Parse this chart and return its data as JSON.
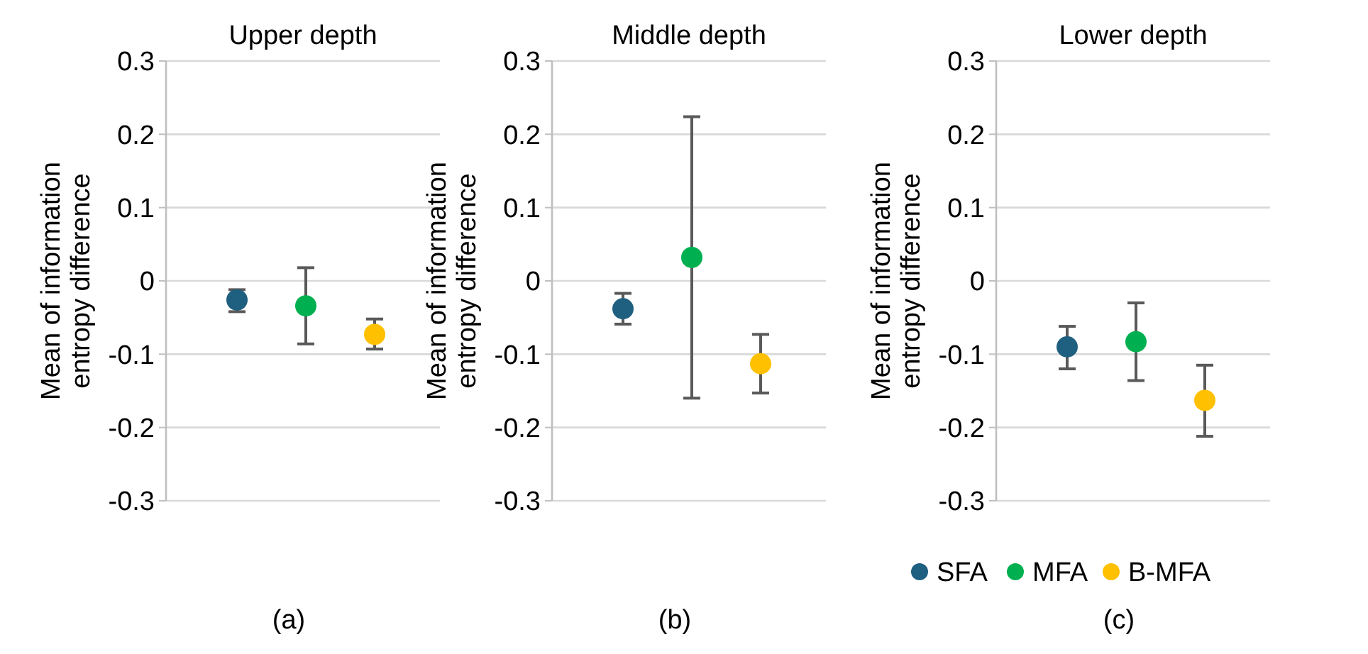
{
  "chart_data": [
    {
      "type": "scatter",
      "title": "Upper depth",
      "ylabel": "Mean of information entropy difference",
      "categories": [
        null,
        null,
        null
      ],
      "ylim": [
        -0.3,
        0.3
      ],
      "yticks": [
        -0.3,
        -0.2,
        -0.1,
        0,
        0.1,
        0.2,
        0.3
      ],
      "grid": "y",
      "marker": "circle",
      "legend": false,
      "annotations": [
        "(a)"
      ],
      "series": [
        {
          "color": "#1f5f80",
          "values": [
            -0.026,
            null,
            null
          ],
          "errors": [
            [
              -0.042,
              -0.012
            ],
            null,
            null
          ]
        },
        {
          "color": "#00b050",
          "values": [
            null,
            -0.034,
            null
          ],
          "errors": [
            null,
            [
              -0.086,
              0.018
            ],
            null
          ]
        },
        {
          "color": "#ffc000",
          "values": [
            null,
            null,
            -0.073
          ],
          "errors": [
            null,
            null,
            [
              -0.093,
              -0.052
            ]
          ]
        }
      ]
    },
    {
      "type": "scatter",
      "title": "Middle depth",
      "ylabel": "Mean of information entropy difference",
      "categories": [
        null,
        null,
        null
      ],
      "ylim": [
        -0.3,
        0.3
      ],
      "yticks": [
        -0.3,
        -0.2,
        -0.1,
        0,
        0.1,
        0.2,
        0.3
      ],
      "grid": "y",
      "marker": "circle",
      "legend": false,
      "annotations": [
        "(b)"
      ],
      "series": [
        {
          "color": "#1f5f80",
          "values": [
            -0.038,
            null,
            null
          ],
          "errors": [
            [
              -0.059,
              -0.017
            ],
            null,
            null
          ]
        },
        {
          "color": "#00b050",
          "values": [
            null,
            0.032,
            null
          ],
          "errors": [
            null,
            [
              -0.16,
              0.224
            ],
            null
          ]
        },
        {
          "color": "#ffc000",
          "values": [
            null,
            null,
            -0.113
          ],
          "errors": [
            null,
            null,
            [
              -0.153,
              -0.073
            ]
          ]
        }
      ]
    },
    {
      "type": "scatter",
      "title": "Lower depth",
      "ylabel": "Mean of information entropy difference",
      "categories": [
        null,
        null,
        null
      ],
      "ylim": [
        -0.3,
        0.3
      ],
      "yticks": [
        -0.3,
        -0.2,
        -0.1,
        0,
        0.1,
        0.2,
        0.3
      ],
      "grid": "y",
      "marker": "circle",
      "legend": "bottom",
      "annotations": [
        "(c)"
      ],
      "series": [
        {
          "name": "SFA",
          "color": "#1f5f80",
          "values": [
            -0.09,
            null,
            null
          ],
          "errors": [
            [
              -0.12,
              -0.062
            ],
            null,
            null
          ]
        },
        {
          "name": "MFA",
          "color": "#00b050",
          "values": [
            null,
            -0.083,
            null
          ],
          "errors": [
            null,
            [
              -0.136,
              -0.03
            ],
            null
          ]
        },
        {
          "name": "B-MFA",
          "color": "#ffc000",
          "values": [
            null,
            null,
            -0.163
          ],
          "errors": [
            null,
            null,
            [
              -0.212,
              -0.115
            ]
          ]
        }
      ]
    }
  ]
}
